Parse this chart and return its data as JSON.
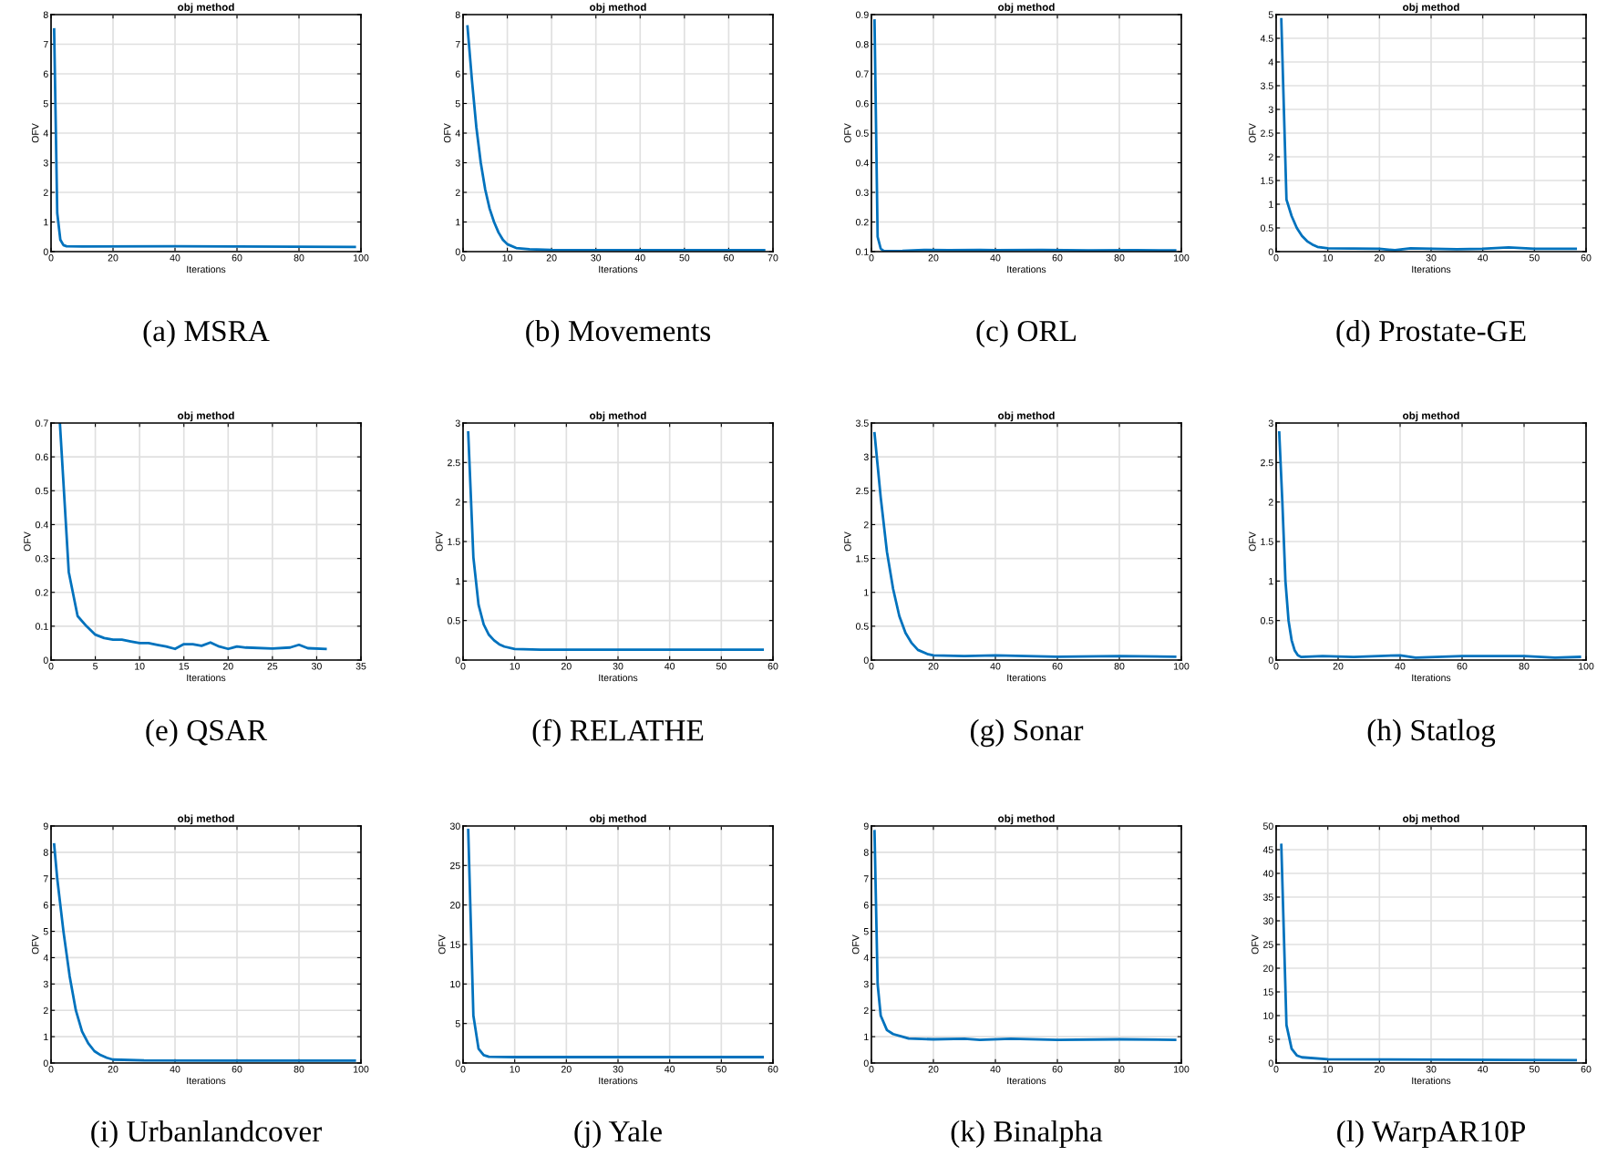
{
  "chart_data": [
    {
      "type": "line",
      "title": "obj method",
      "xlabel": "Iterations",
      "ylabel": "OFV",
      "annotations": [
        "(a) MSRA"
      ],
      "xlim": [
        0,
        100
      ],
      "xticks": [
        0,
        20,
        40,
        60,
        80,
        100
      ],
      "ylim": [
        0,
        8
      ],
      "yticks": [
        0,
        1,
        2,
        3,
        4,
        5,
        6,
        7,
        8
      ],
      "grid": true,
      "series": [
        {
          "color": "#0072bd",
          "x": [
            1,
            2,
            3,
            4,
            5,
            10,
            40,
            60,
            98
          ],
          "values": [
            7.5,
            1.3,
            0.4,
            0.22,
            0.18,
            0.17,
            0.18,
            0.17,
            0.16
          ]
        }
      ]
    },
    {
      "type": "line",
      "title": "obj method",
      "xlabel": "Iterations",
      "ylabel": "OFV",
      "annotations": [
        "(b) Movements"
      ],
      "xlim": [
        0,
        70
      ],
      "xticks": [
        0,
        10,
        20,
        30,
        40,
        50,
        60,
        70
      ],
      "ylim": [
        0,
        8
      ],
      "yticks": [
        0,
        1,
        2,
        3,
        4,
        5,
        6,
        7,
        8
      ],
      "grid": true,
      "series": [
        {
          "color": "#0072bd",
          "x": [
            1,
            2,
            3,
            4,
            5,
            6,
            7,
            8,
            9,
            10,
            12,
            15,
            20,
            40,
            68
          ],
          "values": [
            7.6,
            5.8,
            4.2,
            3.0,
            2.1,
            1.45,
            1.0,
            0.65,
            0.4,
            0.25,
            0.12,
            0.08,
            0.06,
            0.05,
            0.05
          ]
        }
      ]
    },
    {
      "type": "line",
      "title": "obj method",
      "xlabel": "Iterations",
      "ylabel": "OFV",
      "annotations": [
        "(c) ORL"
      ],
      "xlim": [
        0,
        100
      ],
      "xticks": [
        0,
        20,
        40,
        60,
        80,
        100
      ],
      "ylim": [
        0.1,
        0.9
      ],
      "yticks": [
        0.1,
        0.2,
        0.3,
        0.4,
        0.5,
        0.6,
        0.7,
        0.8,
        0.9
      ],
      "grid": true,
      "series": [
        {
          "color": "#0072bd",
          "x": [
            1,
            2,
            3,
            4,
            10,
            17,
            25,
            35,
            40,
            55,
            70,
            85,
            98
          ],
          "values": [
            0.88,
            0.15,
            0.11,
            0.102,
            0.103,
            0.106,
            0.105,
            0.106,
            0.105,
            0.106,
            0.104,
            0.105,
            0.104
          ]
        }
      ]
    },
    {
      "type": "line",
      "title": "obj method",
      "xlabel": "Iterations",
      "ylabel": "OFV",
      "annotations": [
        "(d) Prostate-GE"
      ],
      "xlim": [
        0,
        60
      ],
      "xticks": [
        0,
        10,
        20,
        30,
        40,
        50,
        60
      ],
      "ylim": [
        0,
        5
      ],
      "yticks": [
        0,
        0.5,
        1,
        1.5,
        2,
        2.5,
        3,
        3.5,
        4,
        4.5,
        5
      ],
      "grid": true,
      "series": [
        {
          "color": "#0072bd",
          "x": [
            1,
            2,
            3,
            4,
            5,
            6,
            7,
            8,
            10,
            20,
            23,
            26,
            35,
            40,
            45,
            50,
            58
          ],
          "values": [
            4.9,
            1.1,
            0.75,
            0.5,
            0.33,
            0.22,
            0.15,
            0.1,
            0.07,
            0.06,
            0.03,
            0.07,
            0.05,
            0.06,
            0.09,
            0.06,
            0.06
          ]
        }
      ]
    },
    {
      "type": "line",
      "title": "obj method",
      "xlabel": "Iterations",
      "ylabel": "OFV",
      "annotations": [
        "(e) QSAR"
      ],
      "xlim": [
        0,
        35
      ],
      "xticks": [
        0,
        5,
        10,
        15,
        20,
        25,
        30,
        35
      ],
      "ylim": [
        0,
        0.7
      ],
      "yticks": [
        0,
        0.1,
        0.2,
        0.3,
        0.4,
        0.5,
        0.6,
        0.7
      ],
      "grid": true,
      "series": [
        {
          "color": "#0072bd",
          "x": [
            1,
            2,
            3,
            4,
            5,
            6,
            7,
            8,
            9,
            10,
            11,
            12,
            13,
            14,
            15,
            16,
            17,
            18,
            19,
            20,
            21,
            22,
            25,
            27,
            28,
            29,
            31
          ],
          "values": [
            0.7,
            0.26,
            0.13,
            0.1,
            0.075,
            0.065,
            0.06,
            0.06,
            0.055,
            0.05,
            0.05,
            0.045,
            0.04,
            0.033,
            0.047,
            0.047,
            0.042,
            0.052,
            0.04,
            0.033,
            0.04,
            0.037,
            0.034,
            0.037,
            0.045,
            0.035,
            0.033
          ]
        }
      ]
    },
    {
      "type": "line",
      "title": "obj method",
      "xlabel": "Iterations",
      "ylabel": "OFV",
      "annotations": [
        "(f) RELATHE"
      ],
      "xlim": [
        0,
        60
      ],
      "xticks": [
        0,
        10,
        20,
        30,
        40,
        50,
        60
      ],
      "ylim": [
        0,
        3
      ],
      "yticks": [
        0,
        0.5,
        1,
        1.5,
        2,
        2.5,
        3
      ],
      "grid": true,
      "series": [
        {
          "color": "#0072bd",
          "x": [
            1,
            2,
            3,
            4,
            5,
            6,
            7,
            8,
            10,
            15,
            58
          ],
          "values": [
            2.88,
            1.3,
            0.7,
            0.45,
            0.32,
            0.25,
            0.2,
            0.17,
            0.14,
            0.13,
            0.13
          ]
        }
      ]
    },
    {
      "type": "line",
      "title": "obj method",
      "xlabel": "Iterations",
      "ylabel": "OFV",
      "annotations": [
        "(g) Sonar"
      ],
      "xlim": [
        0,
        100
      ],
      "xticks": [
        0,
        20,
        40,
        60,
        80,
        100
      ],
      "ylim": [
        0,
        3.5
      ],
      "yticks": [
        0,
        0.5,
        1,
        1.5,
        2,
        2.5,
        3,
        3.5
      ],
      "grid": true,
      "series": [
        {
          "color": "#0072bd",
          "x": [
            1,
            3,
            5,
            7,
            9,
            11,
            13,
            15,
            18,
            20,
            30,
            40,
            60,
            80,
            98
          ],
          "values": [
            3.35,
            2.4,
            1.6,
            1.05,
            0.65,
            0.4,
            0.25,
            0.15,
            0.09,
            0.07,
            0.06,
            0.07,
            0.05,
            0.06,
            0.05
          ]
        }
      ]
    },
    {
      "type": "line",
      "title": "obj method",
      "xlabel": "Iterations",
      "ylabel": "OFV",
      "annotations": [
        "(h) Statlog"
      ],
      "xlim": [
        0,
        100
      ],
      "xticks": [
        0,
        20,
        40,
        60,
        80,
        100
      ],
      "ylim": [
        0,
        3
      ],
      "yticks": [
        0,
        0.5,
        1,
        1.5,
        2,
        2.5,
        3
      ],
      "grid": true,
      "series": [
        {
          "color": "#0072bd",
          "x": [
            1,
            2,
            3,
            4,
            5,
            6,
            7,
            8,
            15,
            25,
            40,
            45,
            60,
            80,
            90,
            98
          ],
          "values": [
            2.88,
            2.0,
            1.0,
            0.5,
            0.25,
            0.12,
            0.06,
            0.04,
            0.05,
            0.04,
            0.06,
            0.03,
            0.05,
            0.05,
            0.03,
            0.04
          ]
        }
      ]
    },
    {
      "type": "line",
      "title": "obj method",
      "xlabel": "Iterations",
      "ylabel": "OFV",
      "annotations": [
        "(i) Urbanlandcover"
      ],
      "xlim": [
        0,
        100
      ],
      "xticks": [
        0,
        20,
        40,
        60,
        80,
        100
      ],
      "ylim": [
        0,
        9
      ],
      "yticks": [
        0,
        1,
        2,
        3,
        4,
        5,
        6,
        7,
        8,
        9
      ],
      "grid": true,
      "series": [
        {
          "color": "#0072bd",
          "x": [
            1,
            2,
            4,
            6,
            8,
            10,
            12,
            14,
            16,
            18,
            20,
            30,
            60,
            98
          ],
          "values": [
            8.3,
            7.0,
            5.0,
            3.3,
            2.0,
            1.2,
            0.75,
            0.45,
            0.3,
            0.2,
            0.13,
            0.1,
            0.09,
            0.09
          ]
        }
      ]
    },
    {
      "type": "line",
      "title": "obj method",
      "xlabel": "Iterations",
      "ylabel": "OFV",
      "annotations": [
        "(j) Yale"
      ],
      "xlim": [
        0,
        60
      ],
      "xticks": [
        0,
        10,
        20,
        30,
        40,
        50,
        60
      ],
      "ylim": [
        0,
        30
      ],
      "yticks": [
        0,
        5,
        10,
        15,
        20,
        25,
        30
      ],
      "grid": true,
      "series": [
        {
          "color": "#0072bd",
          "x": [
            1,
            2,
            3,
            4,
            5,
            10,
            58
          ],
          "values": [
            29.5,
            6,
            1.8,
            1.0,
            0.8,
            0.75,
            0.75
          ]
        }
      ]
    },
    {
      "type": "line",
      "title": "obj method",
      "xlabel": "Iterations",
      "ylabel": "OFV",
      "annotations": [
        "(k) Binalpha"
      ],
      "xlim": [
        0,
        100
      ],
      "xticks": [
        0,
        20,
        40,
        60,
        80,
        100
      ],
      "ylim": [
        0,
        9
      ],
      "yticks": [
        0,
        1,
        2,
        3,
        4,
        5,
        6,
        7,
        8,
        9
      ],
      "grid": true,
      "series": [
        {
          "color": "#0072bd",
          "x": [
            1,
            2,
            3,
            5,
            7,
            10,
            12,
            20,
            30,
            35,
            45,
            60,
            80,
            98
          ],
          "values": [
            8.8,
            3.0,
            1.8,
            1.25,
            1.1,
            1.0,
            0.93,
            0.9,
            0.92,
            0.88,
            0.92,
            0.88,
            0.9,
            0.88
          ]
        }
      ]
    },
    {
      "type": "line",
      "title": "obj method",
      "xlabel": "Iterations",
      "ylabel": "OFV",
      "annotations": [
        "(l) WarpAR10P"
      ],
      "xlim": [
        0,
        60
      ],
      "xticks": [
        0,
        10,
        20,
        30,
        40,
        50,
        60
      ],
      "ylim": [
        0,
        50
      ],
      "yticks": [
        0,
        5,
        10,
        15,
        20,
        25,
        30,
        35,
        40,
        45,
        50
      ],
      "grid": true,
      "series": [
        {
          "color": "#0072bd",
          "x": [
            1,
            2,
            3,
            4,
            5,
            10,
            58
          ],
          "values": [
            46,
            8,
            3,
            1.6,
            1.2,
            0.8,
            0.6
          ]
        }
      ]
    }
  ]
}
